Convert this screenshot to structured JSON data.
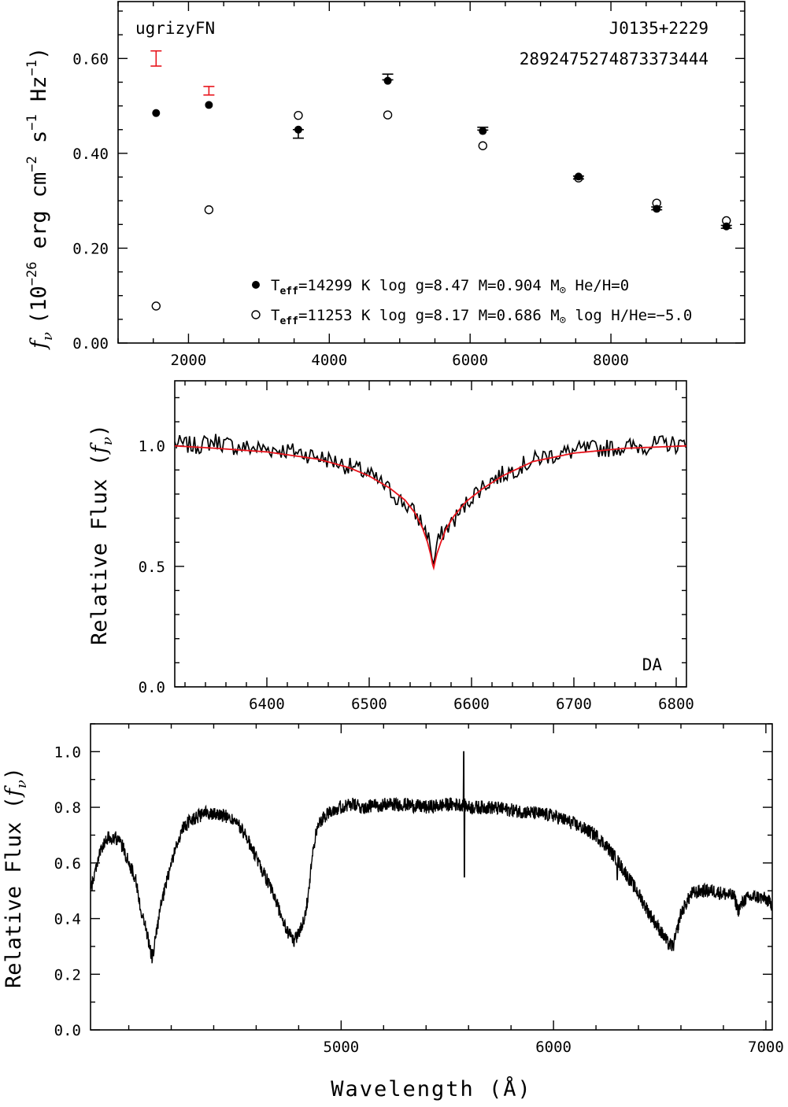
{
  "chart_data": [
    {
      "type": "scatter",
      "panel": "photometry",
      "ylabel_parts": {
        "f": "f",
        "nu": "ν",
        "open": "(10",
        "e1": "−26",
        "t1": " erg cm",
        "e2": "−2",
        "t2": " s",
        "e3": "−1",
        "t3": " Hz",
        "e4": "−1",
        "close": ")"
      },
      "xlim": [
        1000,
        9900
      ],
      "ylim": [
        0.0,
        0.72
      ],
      "xticks": [
        2000,
        4000,
        6000,
        8000
      ],
      "xtick_labels": [
        "2000",
        "4000",
        "6000",
        "8000"
      ],
      "yticks": [
        0.0,
        0.2,
        0.4,
        0.6
      ],
      "ytick_labels": [
        "0.00",
        "0.20",
        "0.40",
        "0.60"
      ],
      "annotations": {
        "filters": "ugrizyFN",
        "object_name": "J0135+2229",
        "source_id": "2892475274873373444"
      },
      "series": [
        {
          "name": "observed_red",
          "color": "#e8141c",
          "x": [
            1540,
            2290
          ],
          "y": [
            0.6,
            0.532
          ],
          "yerr": [
            0.016,
            0.009
          ]
        },
        {
          "name": "observed_black",
          "color": "#000000",
          "x": [
            3560,
            4830,
            6180,
            7540,
            8650,
            9640
          ],
          "y": [
            0.441,
            0.561,
            0.452,
            0.349,
            0.284,
            0.245
          ],
          "yerr": [
            0.009,
            0.006,
            0.003,
            0.003,
            0.003,
            0.003
          ]
        },
        {
          "name": "model_filled",
          "color": "#000000",
          "x": [
            1540,
            2290,
            3560,
            4830,
            6180,
            7540,
            8650,
            9640
          ],
          "y": [
            0.485,
            0.502,
            0.45,
            0.553,
            0.447,
            0.351,
            0.283,
            0.246
          ]
        },
        {
          "name": "model_open",
          "color": "#000000",
          "x": [
            1540,
            2290,
            3560,
            4830,
            6180,
            7540,
            8650,
            9640
          ],
          "y": [
            0.078,
            0.281,
            0.48,
            0.481,
            0.416,
            0.348,
            0.295,
            0.258
          ]
        }
      ],
      "legend": [
        {
          "marker": "filled",
          "T": "T",
          "sub": "eff",
          "eq": "=14299 K  log g=8.47  M=0.904 M",
          "tail": "  He/H=0"
        },
        {
          "marker": "open",
          "T": "T",
          "sub": "eff",
          "eq": "=11253 K  log g=8.17  M=0.686 M",
          "tail": " log H/He=−5.0"
        }
      ],
      "sun_symbol": "⊙"
    },
    {
      "type": "line",
      "panel": "halpha",
      "ylabel": "Relative Flux (",
      "ylabel_f": "f",
      "ylabel_nu": "ν",
      "ylabel_close": ")",
      "xlim": [
        6310,
        6810
      ],
      "ylim": [
        0.0,
        1.27
      ],
      "xticks": [
        6400,
        6500,
        6600,
        6700,
        6800
      ],
      "xtick_labels": [
        "6400",
        "6500",
        "6600",
        "6700",
        "6800"
      ],
      "yticks": [
        0.0,
        0.5,
        1.0
      ],
      "ytick_labels": [
        "0.0",
        "0.5",
        "1.0"
      ],
      "annotation": "DA",
      "model": {
        "color": "#e8141c",
        "x": [
          6310,
          6350,
          6400,
          6450,
          6480,
          6500,
          6520,
          6535,
          6545,
          6552,
          6557,
          6560,
          6562.8,
          6566,
          6570,
          6575,
          6583,
          6595,
          6610,
          6630,
          6660,
          6700,
          6750,
          6810
        ],
        "y": [
          1.0,
          0.99,
          0.975,
          0.945,
          0.91,
          0.875,
          0.825,
          0.775,
          0.72,
          0.66,
          0.6,
          0.55,
          0.49,
          0.55,
          0.6,
          0.655,
          0.71,
          0.77,
          0.82,
          0.875,
          0.935,
          0.97,
          0.99,
          1.0
        ]
      },
      "observed": {
        "color": "#000000",
        "x": [
          6310,
          6330,
          6350,
          6370,
          6390,
          6410,
          6430,
          6450,
          6470,
          6490,
          6500,
          6510,
          6520,
          6530,
          6540,
          6550,
          6556,
          6560,
          6562.8,
          6566,
          6572,
          6580,
          6590,
          6600,
          6610,
          6620,
          6630,
          6650,
          6670,
          6690,
          6710,
          6730,
          6750,
          6770,
          6790,
          6810
        ],
        "y": [
          1.01,
          1.0,
          1.02,
          0.995,
          0.99,
          0.985,
          0.975,
          0.955,
          0.93,
          0.9,
          0.88,
          0.85,
          0.815,
          0.775,
          0.74,
          0.69,
          0.64,
          0.59,
          0.5,
          0.59,
          0.64,
          0.68,
          0.73,
          0.79,
          0.83,
          0.86,
          0.88,
          0.92,
          0.955,
          0.97,
          0.985,
          0.99,
          0.995,
          1.0,
          1.01,
          1.0
        ]
      }
    },
    {
      "type": "line",
      "panel": "spectrum",
      "ylabel": "Relative Flux (",
      "ylabel_f": "f",
      "ylabel_nu": "ν",
      "ylabel_close": ")",
      "xlabel": "Wavelength (Å)",
      "xlim": [
        3820,
        7030
      ],
      "ylim": [
        0.0,
        1.1
      ],
      "xticks": [
        5000,
        6000,
        7000
      ],
      "xtick_labels": [
        "5000",
        "6000",
        "7000"
      ],
      "yticks": [
        0.0,
        0.2,
        0.4,
        0.6,
        0.8,
        1.0
      ],
      "ytick_labels": [
        "0.0",
        "0.2",
        "0.4",
        "0.6",
        "0.8",
        "1.0"
      ],
      "observed": {
        "color": "#000000",
        "x": [
          3820,
          3860,
          3900,
          3940,
          3970,
          4000,
          4030,
          4060,
          4080,
          4100,
          4110,
          4120,
          4150,
          4200,
          4250,
          4300,
          4340,
          4360,
          4380,
          4400,
          4450,
          4500,
          4550,
          4600,
          4650,
          4700,
          4740,
          4780,
          4820,
          4840,
          4861,
          4880,
          4900,
          4950,
          5000,
          5050,
          5100,
          5200,
          5300,
          5400,
          5500,
          5577,
          5600,
          5700,
          5800,
          5900,
          6000,
          6100,
          6200,
          6250,
          6300,
          6350,
          6400,
          6450,
          6500,
          6540,
          6563,
          6580,
          6600,
          6650,
          6700,
          6750,
          6800,
          6850,
          6870,
          6900,
          6950,
          7000,
          7030
        ],
        "y": [
          0.5,
          0.63,
          0.69,
          0.69,
          0.66,
          0.6,
          0.55,
          0.42,
          0.37,
          0.29,
          0.26,
          0.3,
          0.44,
          0.6,
          0.72,
          0.76,
          0.77,
          0.78,
          0.78,
          0.78,
          0.77,
          0.75,
          0.7,
          0.62,
          0.54,
          0.45,
          0.36,
          0.32,
          0.38,
          0.46,
          0.6,
          0.7,
          0.75,
          0.79,
          0.8,
          0.81,
          0.8,
          0.81,
          0.81,
          0.8,
          0.81,
          0.81,
          0.8,
          0.8,
          0.79,
          0.78,
          0.77,
          0.74,
          0.7,
          0.66,
          0.61,
          0.55,
          0.49,
          0.42,
          0.36,
          0.31,
          0.3,
          0.35,
          0.42,
          0.49,
          0.5,
          0.5,
          0.49,
          0.48,
          0.43,
          0.47,
          0.48,
          0.47,
          0.45
        ]
      }
    }
  ]
}
